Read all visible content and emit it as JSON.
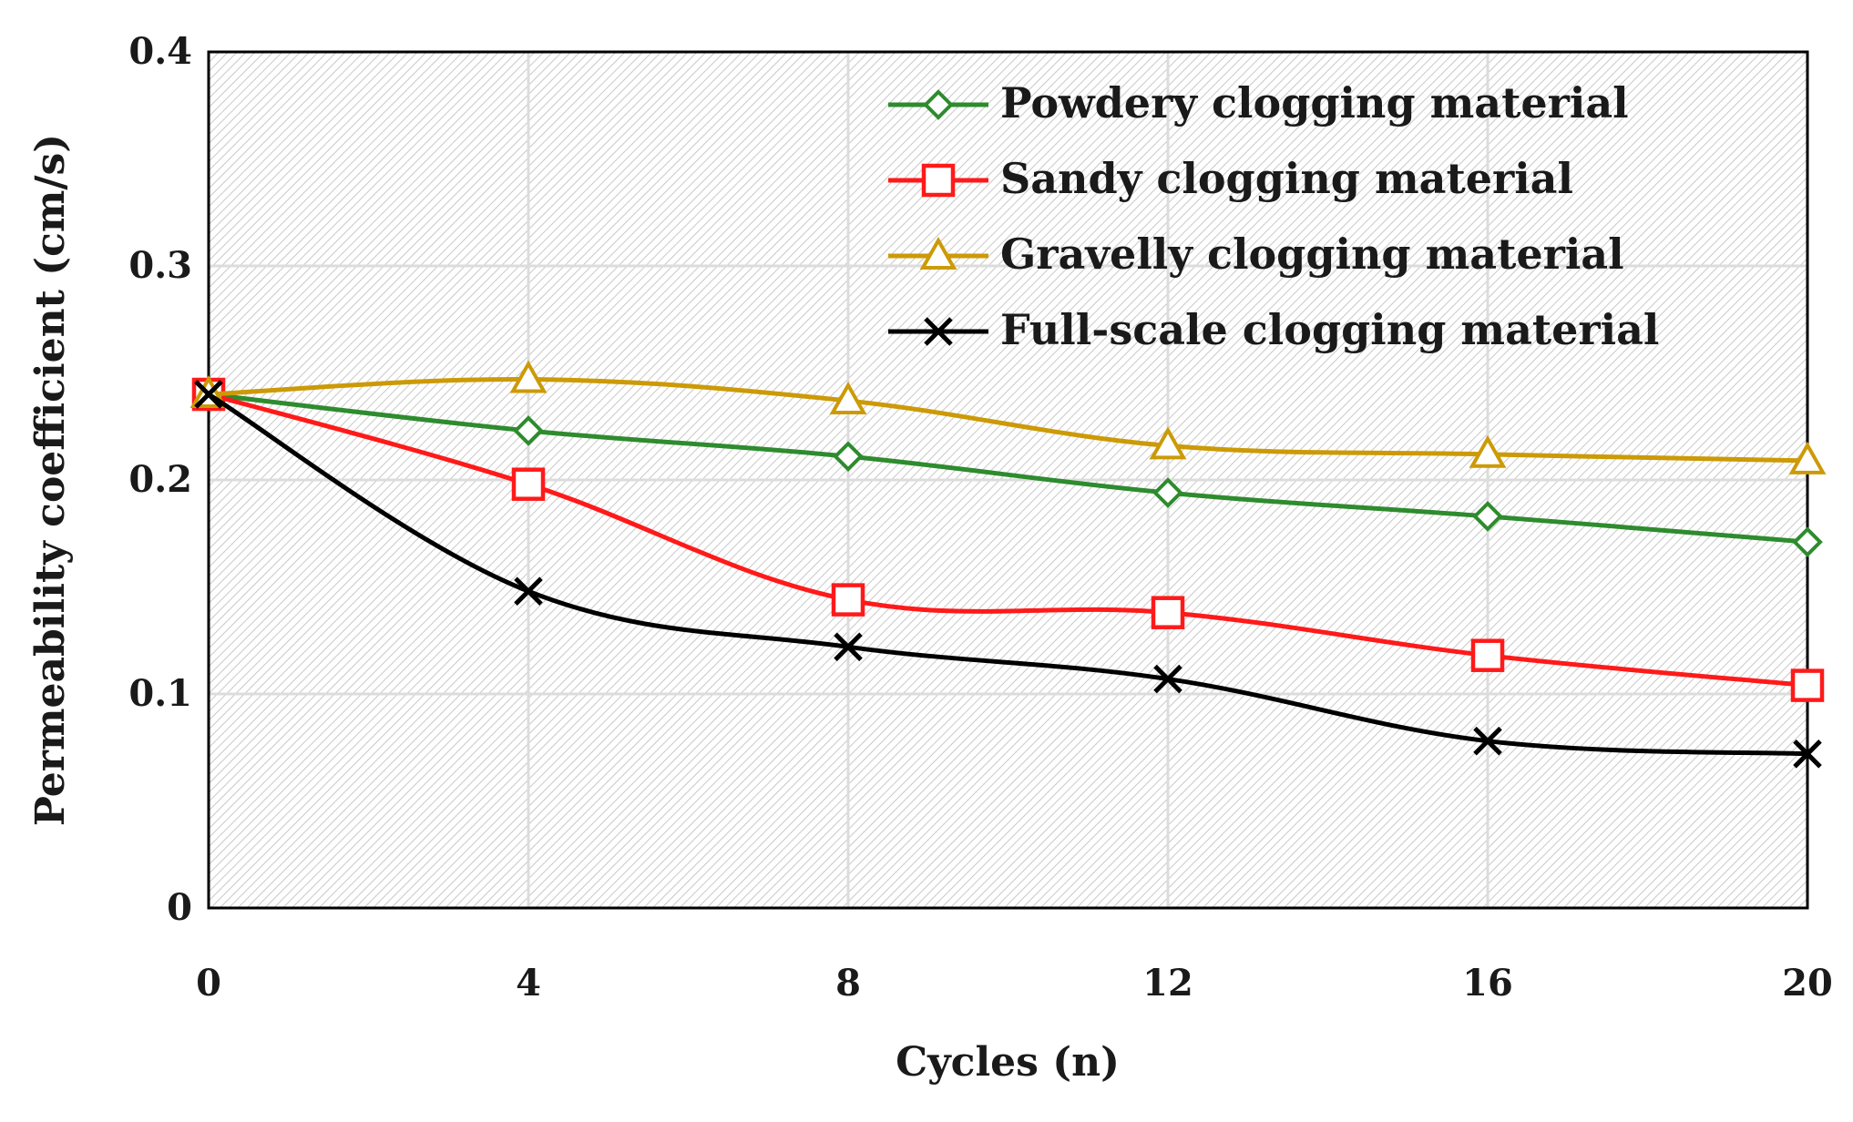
{
  "chart_data": {
    "type": "line",
    "xlabel": "Cycles (n)",
    "ylabel": "Permeability coefficient (cm/s)",
    "x": [
      0,
      4,
      8,
      12,
      16,
      20
    ],
    "xticks": [
      "0",
      "4",
      "8",
      "12",
      "16",
      "20"
    ],
    "yticks": [
      "0",
      "0.1",
      "0.2",
      "0.3",
      "0.4"
    ],
    "xlim": [
      0,
      20
    ],
    "ylim": [
      0,
      0.4
    ],
    "grid": true,
    "legend_position": "top-right",
    "series": [
      {
        "name": "Powdery clogging material",
        "color": "#2e8b2e",
        "marker": "diamond",
        "values": [
          0.24,
          0.223,
          0.211,
          0.194,
          0.183,
          0.171
        ]
      },
      {
        "name": "Sandy clogging material",
        "color": "#ff1a1a",
        "marker": "square",
        "values": [
          0.24,
          0.198,
          0.144,
          0.138,
          0.118,
          0.104
        ]
      },
      {
        "name": "Gravelly clogging material",
        "color": "#cc9a06",
        "marker": "triangle",
        "values": [
          0.24,
          0.247,
          0.237,
          0.216,
          0.212,
          0.209
        ]
      },
      {
        "name": "Full-scale clogging material",
        "color": "#000000",
        "marker": "x",
        "values": [
          0.24,
          0.148,
          0.122,
          0.107,
          0.078,
          0.072
        ]
      }
    ]
  }
}
